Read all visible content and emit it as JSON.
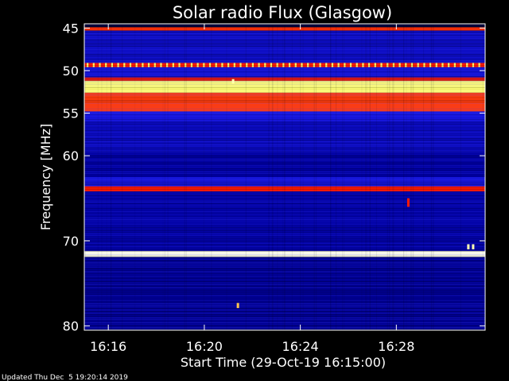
{
  "chart_data": {
    "type": "heatmap",
    "title": "Solar radio Flux (Glasgow)",
    "ylabel": "Frequency [MHz]",
    "xlabel": "Start Time (29-Oct-19 16:15:00)",
    "footer": "Updated Thu Dec  5 19:20:14 2019",
    "x_range_minutes": [
      0,
      16.7
    ],
    "x_ticks": [
      {
        "label": "16:16",
        "minutes": 1
      },
      {
        "label": "16:20",
        "minutes": 5
      },
      {
        "label": "16:24",
        "minutes": 9
      },
      {
        "label": "16:28",
        "minutes": 13
      }
    ],
    "y_range_mhz": [
      44.5,
      80.5
    ],
    "y_ticks": [
      45,
      50,
      55,
      60,
      70,
      80
    ],
    "y_tick_labels": [
      "45",
      "50",
      "55",
      "60",
      "70",
      "80"
    ],
    "colormap": [
      "#000010",
      "#0000a0",
      "#1a1ae6",
      "#ff1a00",
      "#ffff66",
      "#ffffff"
    ],
    "bands": [
      {
        "f0": 44.9,
        "f1": 45.3,
        "level": 0.62
      },
      {
        "f0": 45.3,
        "f1": 49.1,
        "level": 0.3
      },
      {
        "f0": 49.1,
        "f1": 49.6,
        "level": 0.6,
        "dashed": true
      },
      {
        "f0": 49.6,
        "f1": 50.8,
        "level": 0.34
      },
      {
        "f0": 50.8,
        "f1": 51.2,
        "level": 0.58
      },
      {
        "f0": 51.2,
        "f1": 52.6,
        "level": 0.82
      },
      {
        "f0": 52.6,
        "f1": 54.8,
        "level": 0.63
      },
      {
        "f0": 54.8,
        "f1": 56.0,
        "level": 0.38
      },
      {
        "f0": 56.0,
        "f1": 59.5,
        "level": 0.28
      },
      {
        "f0": 59.5,
        "f1": 62.5,
        "level": 0.2
      },
      {
        "f0": 62.5,
        "f1": 63.6,
        "level": 0.36
      },
      {
        "f0": 63.6,
        "f1": 64.2,
        "level": 0.6
      },
      {
        "f0": 64.2,
        "f1": 71.2,
        "level": 0.22
      },
      {
        "f0": 71.2,
        "f1": 71.9,
        "level": 0.97
      },
      {
        "f0": 71.9,
        "f1": 80.4,
        "level": 0.18
      }
    ],
    "bursts": [
      {
        "minute": 6.2,
        "f0": 51.0,
        "f1": 51.5,
        "level": 0.9
      },
      {
        "minute": 16.0,
        "f0": 70.4,
        "f1": 71.0,
        "level": 0.9
      },
      {
        "minute": 16.2,
        "f0": 70.4,
        "f1": 71.0,
        "level": 0.9
      },
      {
        "minute": 6.4,
        "f0": 77.3,
        "f1": 77.9,
        "level": 0.75
      },
      {
        "minute": 13.5,
        "f0": 65.0,
        "f1": 66.0,
        "level": 0.6
      }
    ]
  }
}
